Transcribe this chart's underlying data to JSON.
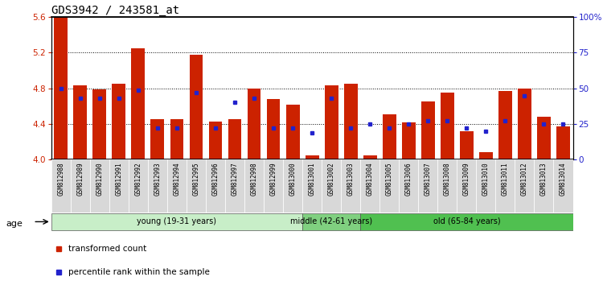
{
  "title": "GDS3942 / 243581_at",
  "samples": [
    "GSM812988",
    "GSM812989",
    "GSM812990",
    "GSM812991",
    "GSM812992",
    "GSM812993",
    "GSM812994",
    "GSM812995",
    "GSM812996",
    "GSM812997",
    "GSM812998",
    "GSM812999",
    "GSM813000",
    "GSM813001",
    "GSM813002",
    "GSM813003",
    "GSM813004",
    "GSM813005",
    "GSM813006",
    "GSM813007",
    "GSM813008",
    "GSM813009",
    "GSM813010",
    "GSM813011",
    "GSM813012",
    "GSM813013",
    "GSM813014"
  ],
  "red_values": [
    5.59,
    4.83,
    4.79,
    4.85,
    5.25,
    4.45,
    4.45,
    5.18,
    4.43,
    4.45,
    4.8,
    4.68,
    4.62,
    4.05,
    4.83,
    4.85,
    4.05,
    4.51,
    4.42,
    4.65,
    4.75,
    4.32,
    4.08,
    4.77,
    4.8,
    4.48,
    4.37
  ],
  "blue_percentiles": [
    50,
    43,
    43,
    43,
    49,
    22,
    22,
    47,
    22,
    40,
    43,
    22,
    22,
    19,
    43,
    22,
    25,
    22,
    25,
    27,
    27,
    22,
    20,
    27,
    45,
    25,
    25
  ],
  "group_labels": [
    "young (19-31 years)",
    "middle (42-61 years)",
    "old (65-84 years)"
  ],
  "group_ends": [
    13,
    16,
    27
  ],
  "group_colors": [
    "#d4f5d4",
    "#80d080",
    "#50c850"
  ],
  "ylim": [
    4.0,
    5.6
  ],
  "y2lim": [
    0,
    100
  ],
  "yticks": [
    4.0,
    4.4,
    4.8,
    5.2,
    5.6
  ],
  "y2ticks": [
    0,
    25,
    50,
    75,
    100
  ],
  "y2ticklabels": [
    "0",
    "25",
    "50",
    "75",
    "100%"
  ],
  "bar_color": "#cc2200",
  "marker_color": "#2222cc",
  "title_fontsize": 10,
  "legend_items": [
    "transformed count",
    "percentile rank within the sample"
  ]
}
